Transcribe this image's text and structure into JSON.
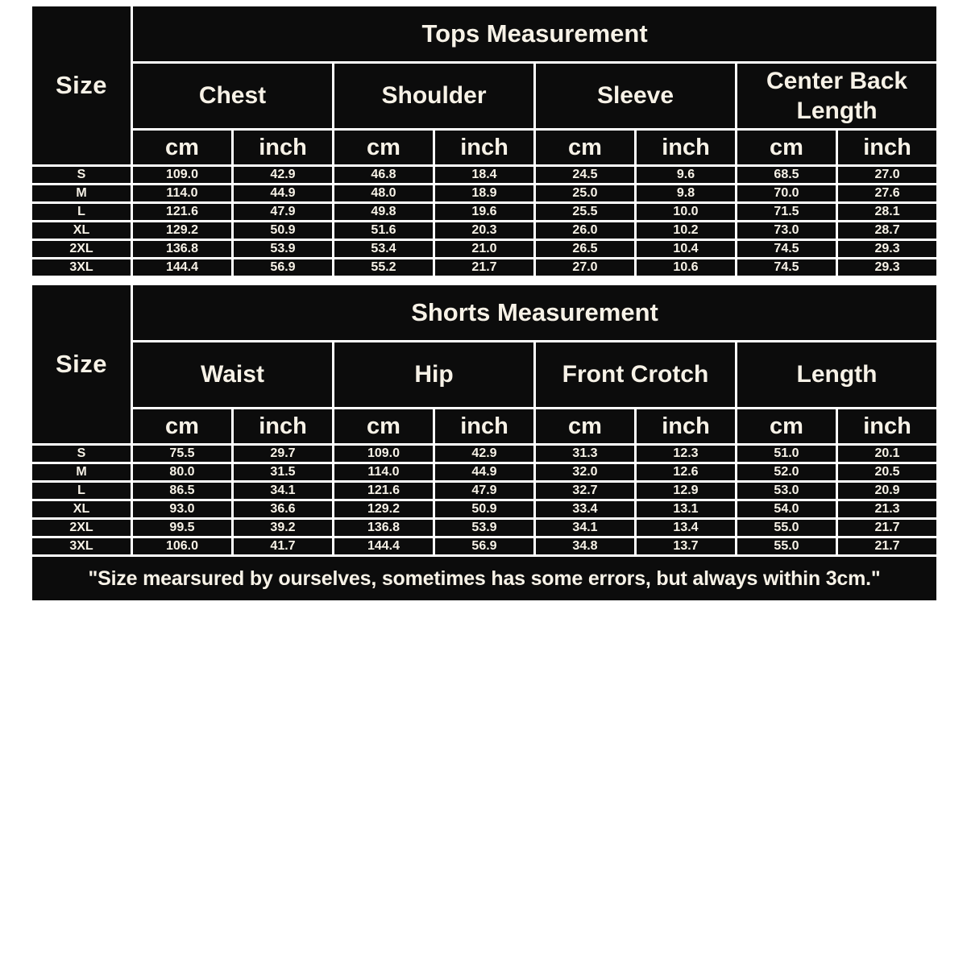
{
  "footer_note": "\"Size mearsured by ourselves, sometimes has some errors, but always within 3cm.\"",
  "colors": {
    "header_bg": "#0c0c0c",
    "header_text": "#f7f2e7",
    "data_text": "#121212",
    "border_dark": "#050505",
    "border_light": "#ffffff",
    "page_bg": "#ffffff"
  },
  "chart_data": [
    {
      "type": "table",
      "title": "Tops Measurement",
      "size_header": "Size",
      "groups": [
        "Chest",
        "Shoulder",
        "Sleeve",
        "Center Back Length"
      ],
      "units": [
        "cm",
        "inch"
      ],
      "rows": [
        {
          "size": "S",
          "values": [
            "109.0",
            "42.9",
            "46.8",
            "18.4",
            "24.5",
            "9.6",
            "68.5",
            "27.0"
          ]
        },
        {
          "size": "M",
          "values": [
            "114.0",
            "44.9",
            "48.0",
            "18.9",
            "25.0",
            "9.8",
            "70.0",
            "27.6"
          ]
        },
        {
          "size": "L",
          "values": [
            "121.6",
            "47.9",
            "49.8",
            "19.6",
            "25.5",
            "10.0",
            "71.5",
            "28.1"
          ]
        },
        {
          "size": "XL",
          "values": [
            "129.2",
            "50.9",
            "51.6",
            "20.3",
            "26.0",
            "10.2",
            "73.0",
            "28.7"
          ]
        },
        {
          "size": "2XL",
          "values": [
            "136.8",
            "53.9",
            "53.4",
            "21.0",
            "26.5",
            "10.4",
            "74.5",
            "29.3"
          ]
        },
        {
          "size": "3XL",
          "values": [
            "144.4",
            "56.9",
            "55.2",
            "21.7",
            "27.0",
            "10.6",
            "74.5",
            "29.3"
          ]
        }
      ]
    },
    {
      "type": "table",
      "title": "Shorts Measurement",
      "size_header": "Size",
      "groups": [
        "Waist",
        "Hip",
        "Front Crotch",
        "Length"
      ],
      "units": [
        "cm",
        "inch"
      ],
      "rows": [
        {
          "size": "S",
          "values": [
            "75.5",
            "29.7",
            "109.0",
            "42.9",
            "31.3",
            "12.3",
            "51.0",
            "20.1"
          ]
        },
        {
          "size": "M",
          "values": [
            "80.0",
            "31.5",
            "114.0",
            "44.9",
            "32.0",
            "12.6",
            "52.0",
            "20.5"
          ]
        },
        {
          "size": "L",
          "values": [
            "86.5",
            "34.1",
            "121.6",
            "47.9",
            "32.7",
            "12.9",
            "53.0",
            "20.9"
          ]
        },
        {
          "size": "XL",
          "values": [
            "93.0",
            "36.6",
            "129.2",
            "50.9",
            "33.4",
            "13.1",
            "54.0",
            "21.3"
          ]
        },
        {
          "size": "2XL",
          "values": [
            "99.5",
            "39.2",
            "136.8",
            "53.9",
            "34.1",
            "13.4",
            "55.0",
            "21.7"
          ]
        },
        {
          "size": "3XL",
          "values": [
            "106.0",
            "41.7",
            "144.4",
            "56.9",
            "34.8",
            "13.7",
            "55.0",
            "21.7"
          ]
        }
      ]
    }
  ]
}
